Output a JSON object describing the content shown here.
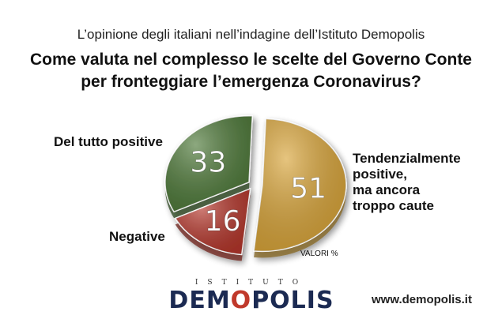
{
  "header": {
    "subtitle": "L’opinione degli italiani nell’indagine dell’Istituto Demopolis",
    "title_line1": "Come valuta nel complesso le scelte del Governo Conte",
    "title_line2": "per fronteggiare l’emergenza Coronavirus?"
  },
  "chart_data": {
    "type": "pie",
    "unit_note": "VALORI %",
    "slices": [
      {
        "label_lines": [
          "Tendenzialmente",
          "positive,",
          "ma ancora",
          "troppo caute"
        ],
        "value": 51,
        "color": "#d9a53a"
      },
      {
        "label_lines": [
          "Negative"
        ],
        "value": 16,
        "color": "#b5372c"
      },
      {
        "label_lines": [
          "Del tutto positive"
        ],
        "value": 33,
        "color": "#4f7a3a"
      }
    ]
  },
  "footer": {
    "brand_top": "ISTITUTO",
    "brand_a": "DEM",
    "brand_o": "O",
    "brand_b": "POLIS",
    "url": "www.demopolis.it"
  }
}
